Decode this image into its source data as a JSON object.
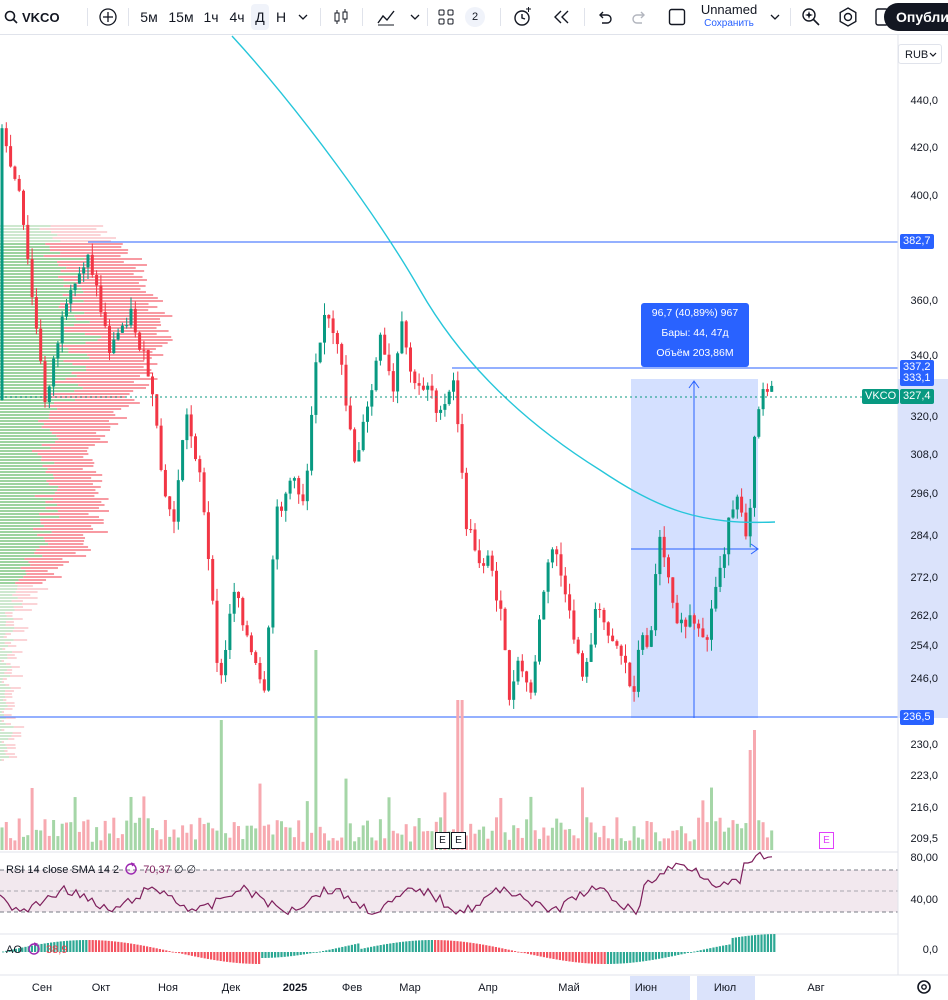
{
  "toolbar": {
    "symbol": "VKCO",
    "intervals": [
      "5м",
      "15м",
      "1ч",
      "4ч",
      "Д",
      "Н"
    ],
    "selected_interval": "Д",
    "layouts_count": "2",
    "layout_name": "Unnamed",
    "save_label": "Сохранить",
    "publish_label": "Опублик"
  },
  "currency": "RUB",
  "price_axis": [
    "440,0",
    "420,0",
    "400,0",
    "360,0",
    "340,0",
    "320,0",
    "308,0",
    "296,0",
    "284,0",
    "272,0",
    "262,0",
    "254,0",
    "246,0",
    "230,0",
    "223,0",
    "216,0",
    "209,5"
  ],
  "price_tags": {
    "level_high": "382,7",
    "level_mid1": "337,2",
    "level_mid2": "333,1",
    "symbol_tag": "VKCO",
    "last_price": "327,4",
    "level_low": "236,5"
  },
  "measure_callout": {
    "line1": "96,7 (40,89%) 967",
    "line2": "Бары: 44, 47д",
    "line3": "Объём 203,86M"
  },
  "time_axis": [
    "Сен",
    "Окт",
    "Ноя",
    "Дек",
    "2025",
    "Фев",
    "Мар",
    "Апр",
    "Май",
    "Июн",
    "Июл",
    "Авг"
  ],
  "event_markers": [
    "E",
    "E",
    "E"
  ],
  "rsi": {
    "label": "RSI 14 close SMA 14 2",
    "value": "70,37",
    "extra": "∅ ∅",
    "axis": [
      "80,00",
      "40,00"
    ]
  },
  "ao": {
    "label": "AO",
    "value": "38,9",
    "axis": [
      "0,0"
    ]
  },
  "colors": {
    "up": "#089981",
    "down": "#f23645",
    "measure_fill": "#2962ff",
    "ma_line": "#26c6da",
    "rsi_line": "#7e1f5c"
  }
}
